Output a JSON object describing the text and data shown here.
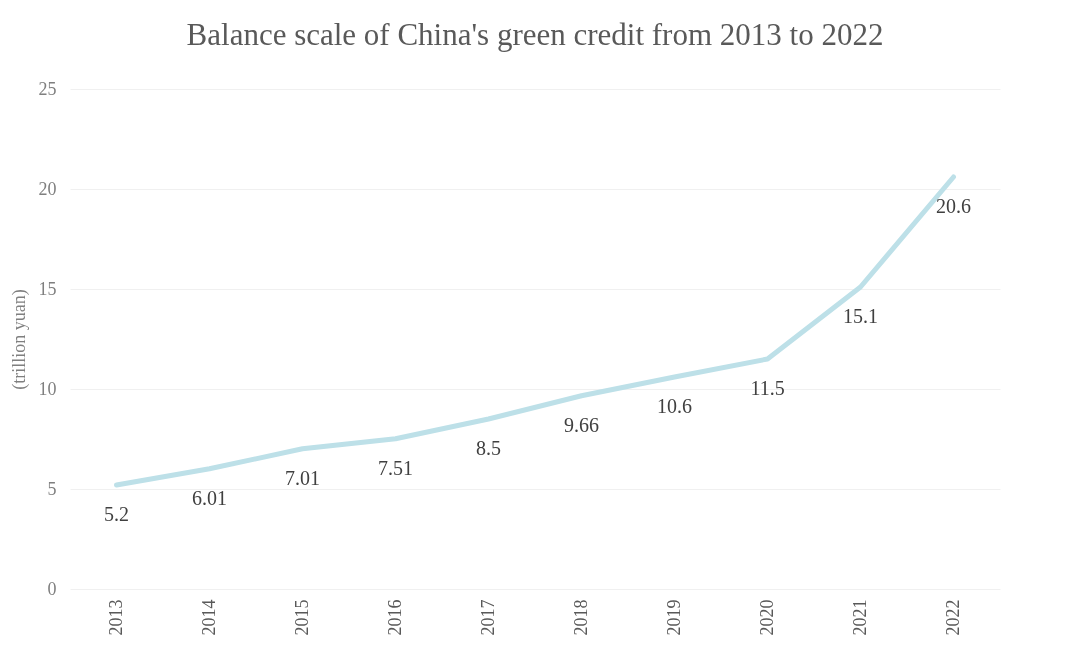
{
  "chart_data": {
    "type": "line",
    "title": "Balance scale of China's green credit from 2013 to 2022",
    "ylabel": "(trillion yuan)",
    "categories": [
      "2013",
      "2014",
      "2015",
      "2016",
      "2017",
      "2018",
      "2019",
      "2020",
      "2021",
      "2022"
    ],
    "series": [
      {
        "color": "#bde0e8",
        "values": [
          5.2,
          6.01,
          7.01,
          7.51,
          8.5,
          9.66,
          10.6,
          11.5,
          15.1,
          20.6
        ]
      }
    ],
    "ylim": [
      0,
      25
    ],
    "yticks": [
      0,
      5,
      10,
      15,
      20,
      25
    ],
    "grid": "y",
    "data_labels": true,
    "marker": "none",
    "line_style": "solid"
  }
}
